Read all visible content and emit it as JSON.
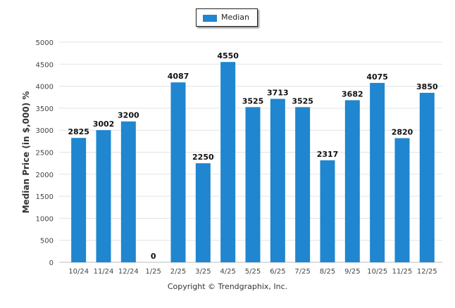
{
  "legend": {
    "label": "Median",
    "color": "#1f86cf"
  },
  "footer": {
    "copyright": "Copyright © Trendgraphix, Inc."
  },
  "chart_data": {
    "type": "bar",
    "title": "",
    "xlabel": "",
    "ylabel": "Median Price (in $,000) %",
    "ylim": [
      0,
      5000
    ],
    "yticks": [
      0,
      500,
      1000,
      1500,
      2000,
      2500,
      3000,
      3500,
      4000,
      4500,
      5000
    ],
    "grid": true,
    "legend_position": "top-center",
    "categories": [
      "10/24",
      "11/24",
      "12/24",
      "1/25",
      "2/25",
      "3/25",
      "4/25",
      "5/25",
      "6/25",
      "7/25",
      "8/25",
      "9/25",
      "10/25",
      "11/25",
      "12/25"
    ],
    "series": [
      {
        "name": "Median",
        "color": "#1f86cf",
        "values": [
          2825,
          3002,
          3200,
          0,
          4087,
          2250,
          4550,
          3525,
          3713,
          3525,
          2317,
          3682,
          4075,
          2820,
          3850
        ]
      }
    ]
  }
}
